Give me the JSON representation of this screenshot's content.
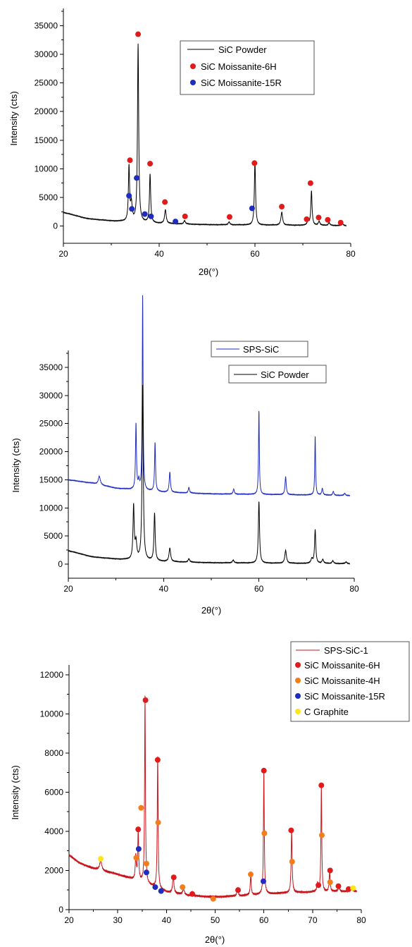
{
  "chart_data": [
    {
      "type": "line",
      "xlabel": "2θ(°)",
      "ylabel": "Intensity (cts)",
      "xlim": [
        20,
        80
      ],
      "ylim": [
        -3000,
        38000
      ],
      "xticks": [
        20,
        40,
        60,
        80
      ],
      "yticks": [
        0,
        5000,
        10000,
        15000,
        20000,
        25000,
        30000,
        35000
      ],
      "legend_position": "top-right",
      "series": [
        {
          "name": "SiC Powder",
          "kind": "line",
          "color": "#000000",
          "baseline": [
            [
              20,
              2400
            ],
            [
              25,
              1300
            ],
            [
              30,
              900
            ],
            [
              40,
              450
            ],
            [
              50,
              250
            ],
            [
              60,
              180
            ],
            [
              70,
              130
            ],
            [
              79,
              80
            ]
          ],
          "peaks": [
            [
              33.7,
              9500,
              0.15
            ],
            [
              34.2,
              3000,
              0.2
            ],
            [
              35.6,
              31000,
              0.15
            ],
            [
              38.1,
              8500,
              0.15
            ],
            [
              41.3,
              2400,
              0.2
            ],
            [
              45.3,
              600,
              0.2
            ],
            [
              54.6,
              500,
              0.2
            ],
            [
              60.0,
              11000,
              0.15
            ],
            [
              65.6,
              2300,
              0.2
            ],
            [
              71.1,
              800,
              0.2
            ],
            [
              71.8,
              6000,
              0.15
            ],
            [
              73.4,
              700,
              0.2
            ],
            [
              75.5,
              500,
              0.2
            ],
            [
              78.3,
              300,
              0.2
            ]
          ]
        },
        {
          "name": "SiC Moissanite-6H",
          "kind": "marker",
          "color": "#e11b1b",
          "points": [
            [
              33.9,
              11500
            ],
            [
              35.6,
              33500
            ],
            [
              38.1,
              10900
            ],
            [
              41.2,
              4200
            ],
            [
              45.4,
              1700
            ],
            [
              54.7,
              1600
            ],
            [
              59.9,
              11000
            ],
            [
              65.6,
              3400
            ],
            [
              70.8,
              1200
            ],
            [
              71.6,
              7500
            ],
            [
              73.3,
              1500
            ],
            [
              75.2,
              1100
            ],
            [
              77.9,
              600
            ]
          ]
        },
        {
          "name": "SiC Moissanite-15R",
          "kind": "marker",
          "color": "#1e2dbe",
          "points": [
            [
              33.7,
              5300
            ],
            [
              34.3,
              3000
            ],
            [
              35.3,
              8400
            ],
            [
              37.0,
              2100
            ],
            [
              38.3,
              1700
            ],
            [
              43.4,
              800
            ],
            [
              59.4,
              3100
            ]
          ]
        }
      ]
    },
    {
      "type": "line",
      "xlabel": "2θ(°)",
      "ylabel": "Intensity (cts)",
      "xlim": [
        20,
        80
      ],
      "ylim": [
        -2500,
        38000
      ],
      "xticks": [
        20,
        40,
        60,
        80
      ],
      "yticks": [
        0,
        5000,
        10000,
        15000,
        20000,
        25000,
        30000,
        35000
      ],
      "legend_position": "top-right",
      "series": [
        {
          "name": "SPS-SiC",
          "kind": "line",
          "color": "#1e2dbe",
          "baseline": [
            [
              20,
              15000
            ],
            [
              25,
              14400
            ],
            [
              30,
              13500
            ],
            [
              40,
              12800
            ],
            [
              50,
              12500
            ],
            [
              60,
              12400
            ],
            [
              70,
              12300
            ],
            [
              79,
              12200
            ]
          ],
          "peaks": [
            [
              26.5,
              1500,
              0.25
            ],
            [
              34.2,
              11700,
              0.12
            ],
            [
              34.8,
              1500,
              0.15
            ],
            [
              35.6,
              34500,
              0.1
            ],
            [
              38.2,
              8700,
              0.12
            ],
            [
              41.3,
              3600,
              0.15
            ],
            [
              45.3,
              1000,
              0.15
            ],
            [
              54.7,
              900,
              0.15
            ],
            [
              60.0,
              15000,
              0.1
            ],
            [
              65.6,
              3200,
              0.15
            ],
            [
              71.8,
              10500,
              0.1
            ],
            [
              73.3,
              1200,
              0.15
            ],
            [
              75.6,
              700,
              0.15
            ],
            [
              78.0,
              400,
              0.15
            ]
          ]
        },
        {
          "name": "SiC Powder",
          "kind": "line",
          "color": "#000000",
          "baseline": [
            [
              20,
              2400
            ],
            [
              25,
              1300
            ],
            [
              30,
              900
            ],
            [
              40,
              450
            ],
            [
              50,
              250
            ],
            [
              60,
              180
            ],
            [
              70,
              130
            ],
            [
              79,
              80
            ]
          ],
          "peaks": [
            [
              33.7,
              9500,
              0.15
            ],
            [
              34.2,
              3000,
              0.2
            ],
            [
              35.6,
              31000,
              0.15
            ],
            [
              38.1,
              8500,
              0.15
            ],
            [
              41.3,
              2400,
              0.2
            ],
            [
              45.3,
              600,
              0.2
            ],
            [
              54.6,
              500,
              0.2
            ],
            [
              60.0,
              11000,
              0.15
            ],
            [
              65.6,
              2300,
              0.2
            ],
            [
              71.1,
              800,
              0.2
            ],
            [
              71.8,
              6000,
              0.15
            ],
            [
              73.4,
              700,
              0.2
            ],
            [
              75.5,
              500,
              0.2
            ],
            [
              78.3,
              300,
              0.2
            ]
          ]
        }
      ]
    },
    {
      "type": "line",
      "xlabel": "2θ(°)",
      "ylabel": "Intensity (cts)",
      "xlim": [
        20,
        80
      ],
      "ylim": [
        0,
        12500
      ],
      "xticks": [
        20,
        30,
        40,
        50,
        60,
        70,
        80
      ],
      "yticks": [
        0,
        2000,
        4000,
        6000,
        8000,
        10000,
        12000
      ],
      "legend_position": "top-right",
      "series": [
        {
          "name": "SPS-SiC-1",
          "kind": "line",
          "color": "#c8161d",
          "baseline": [
            [
              20,
              2800
            ],
            [
              22,
              2400
            ],
            [
              25,
              2100
            ],
            [
              30,
              1800
            ],
            [
              35,
              1400
            ],
            [
              40,
              900
            ],
            [
              45,
              700
            ],
            [
              50,
              650
            ],
            [
              55,
              700
            ],
            [
              60,
              800
            ],
            [
              65,
              850
            ],
            [
              70,
              900
            ],
            [
              80,
              950
            ]
          ],
          "peaks": [
            [
              26.5,
              500,
              0.25
            ],
            [
              33.7,
              1200,
              0.12
            ],
            [
              34.2,
              2500,
              0.12
            ],
            [
              35.6,
              9500,
              0.1
            ],
            [
              38.2,
              6800,
              0.1
            ],
            [
              41.4,
              900,
              0.15
            ],
            [
              43.5,
              300,
              0.2
            ],
            [
              45.3,
              200,
              0.2
            ],
            [
              54.6,
              400,
              0.15
            ],
            [
              57.3,
              1000,
              0.12
            ],
            [
              60.0,
              6300,
              0.1
            ],
            [
              65.7,
              3200,
              0.12
            ],
            [
              71.0,
              400,
              0.15
            ],
            [
              71.8,
              5400,
              0.1
            ],
            [
              73.5,
              1000,
              0.12
            ],
            [
              75.4,
              300,
              0.15
            ],
            [
              78.0,
              200,
              0.15
            ]
          ]
        },
        {
          "name": "SiC Moissanite-6H",
          "kind": "marker",
          "color": "#e11b1b",
          "points": [
            [
              34.2,
              4100
            ],
            [
              35.7,
              10700
            ],
            [
              38.2,
              7650
            ],
            [
              41.5,
              1650
            ],
            [
              45.3,
              800
            ],
            [
              54.7,
              1000
            ],
            [
              60.0,
              7100
            ],
            [
              65.6,
              4050
            ],
            [
              71.2,
              1250
            ],
            [
              71.8,
              6350
            ],
            [
              73.6,
              2000
            ],
            [
              75.3,
              1200
            ],
            [
              77.4,
              1050
            ]
          ]
        },
        {
          "name": "SiC Moissanite-4H",
          "kind": "marker",
          "color": "#f47d19",
          "points": [
            [
              33.8,
              2650
            ],
            [
              34.8,
              5200
            ],
            [
              35.9,
              2350
            ],
            [
              38.3,
              4450
            ],
            [
              43.3,
              1150
            ],
            [
              49.6,
              550
            ],
            [
              57.3,
              1800
            ],
            [
              60.1,
              3900
            ],
            [
              65.8,
              2450
            ],
            [
              71.9,
              3800
            ],
            [
              73.6,
              1400
            ]
          ]
        },
        {
          "name": "SiC Moissanite-15R",
          "kind": "marker",
          "color": "#1e2dbe",
          "points": [
            [
              34.3,
              3100
            ],
            [
              35.9,
              1900
            ],
            [
              37.7,
              1150
            ],
            [
              38.9,
              950
            ],
            [
              59.9,
              1450
            ]
          ]
        },
        {
          "name": "C Graphite",
          "kind": "marker",
          "color": "#ffe51a",
          "points": [
            [
              26.5,
              2600
            ],
            [
              78.3,
              1100
            ]
          ]
        }
      ]
    }
  ]
}
